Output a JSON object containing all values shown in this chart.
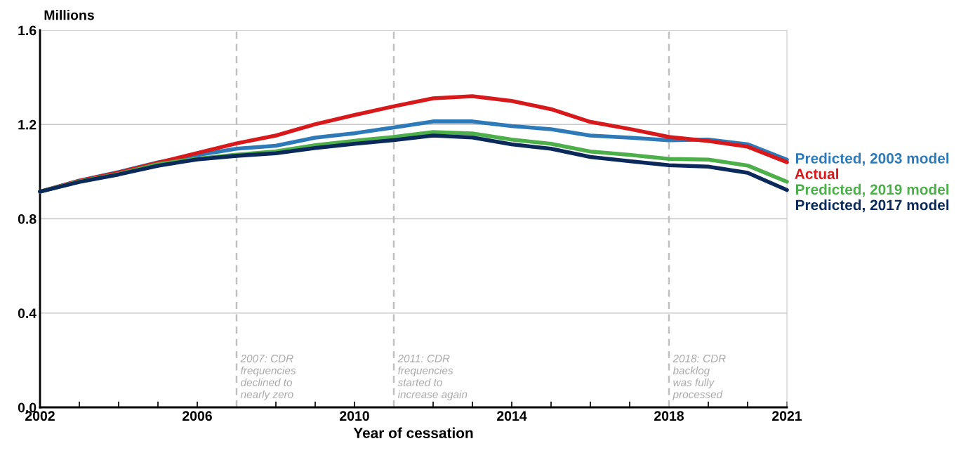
{
  "chart_data": {
    "type": "line",
    "xlabel": "Year of cessation",
    "ylabel": "Millions",
    "x": [
      2002,
      2003,
      2004,
      2005,
      2006,
      2007,
      2008,
      2009,
      2010,
      2011,
      2012,
      2013,
      2014,
      2015,
      2016,
      2017,
      2018,
      2019,
      2020,
      2021
    ],
    "series": [
      {
        "name": "Predicted, 2003 model",
        "color": "#2e7ab8",
        "values": [
          0.915,
          0.962,
          0.998,
          1.039,
          1.07,
          1.097,
          1.11,
          1.144,
          1.163,
          1.187,
          1.213,
          1.213,
          1.193,
          1.18,
          1.153,
          1.144,
          1.133,
          1.136,
          1.116,
          1.051
        ]
      },
      {
        "name": "Actual",
        "color": "#d7191c",
        "values": [
          0.915,
          0.961,
          0.996,
          1.038,
          1.079,
          1.12,
          1.153,
          1.201,
          1.24,
          1.277,
          1.311,
          1.32,
          1.3,
          1.265,
          1.211,
          1.181,
          1.147,
          1.13,
          1.106,
          1.04
        ]
      },
      {
        "name": "Predicted, 2019 model",
        "color": "#4daf4a",
        "values": [
          0.915,
          0.958,
          0.99,
          1.032,
          1.055,
          1.072,
          1.086,
          1.112,
          1.131,
          1.147,
          1.168,
          1.162,
          1.136,
          1.118,
          1.085,
          1.071,
          1.054,
          1.051,
          1.026,
          0.957
        ]
      },
      {
        "name": "Predicted, 2017 model",
        "color": "#0b2a5b",
        "values": [
          0.915,
          0.956,
          0.988,
          1.025,
          1.052,
          1.067,
          1.078,
          1.1,
          1.118,
          1.134,
          1.153,
          1.145,
          1.116,
          1.097,
          1.062,
          1.044,
          1.027,
          1.021,
          0.995,
          0.922
        ]
      }
    ],
    "xlim": [
      2002,
      2021
    ],
    "ylim": [
      0,
      1.6
    ],
    "xticks": [
      2002,
      {
        "value": 2003,
        "label": null
      },
      {
        "value": 2004,
        "label": null
      },
      {
        "value": 2005,
        "label": null
      },
      2006,
      {
        "value": 2007,
        "label": null
      },
      {
        "value": 2008,
        "label": null
      },
      {
        "value": 2009,
        "label": null
      },
      2010,
      {
        "value": 2011,
        "label": null
      },
      {
        "value": 2012,
        "label": null
      },
      {
        "value": 2013,
        "label": null
      },
      2014,
      {
        "value": 2015,
        "label": null
      },
      {
        "value": 2016,
        "label": null
      },
      {
        "value": 2017,
        "label": null
      },
      2018,
      {
        "value": 2019,
        "label": null
      },
      {
        "value": 2020,
        "label": null
      },
      2021
    ],
    "yticks": [
      {
        "value": 0,
        "label": "0.0"
      },
      0.4,
      0.8,
      1.2,
      1.6
    ],
    "ref_lines": [
      {
        "axis": "x",
        "value": 2007,
        "label": "2007: CDR\nfrequencies\ndeclined to\nnearly zero",
        "color": "#c0c0c0",
        "line_style": "dashed"
      },
      {
        "axis": "x",
        "value": 2011,
        "label": "2011: CDR\nfrequencies\nstarted to\nincrease again",
        "color": "#c0c0c0",
        "line_style": "dashed"
      },
      {
        "axis": "x",
        "value": 2018,
        "label": "2018: CDR\nbacklog\nwas fully\nprocessed",
        "color": "#c0c0c0",
        "line_style": "dashed"
      }
    ],
    "grid": "y",
    "legend": false,
    "marker": "none",
    "line_style": "solid"
  }
}
